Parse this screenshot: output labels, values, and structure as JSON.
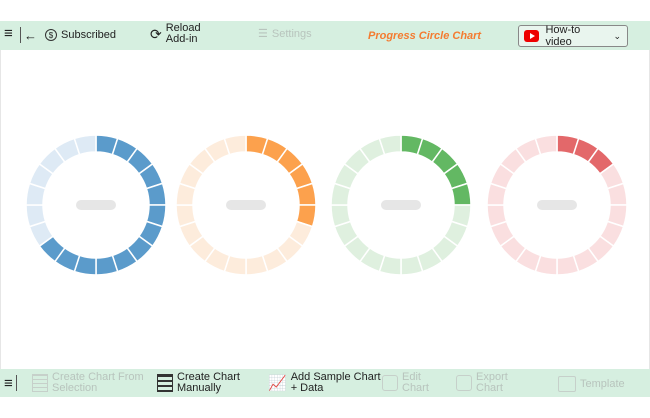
{
  "toolbar": {
    "subscribed": "Subscribed",
    "reload_line1": "Reload",
    "reload_line2": "Add-in",
    "settings": "Settings",
    "title": "Progress Circle Chart",
    "howto": "How-to video"
  },
  "bottom": {
    "from_sel_1": "Create Chart From",
    "from_sel_2": "Selection",
    "manual_1": "Create Chart",
    "manual_2": "Manually",
    "sample_1": "Add Sample Chart",
    "sample_2": "+ Data",
    "edit_1": "Edit",
    "edit_2": "Chart",
    "export_1": "Export",
    "export_2": "Chart",
    "template": "Template"
  },
  "chart_data": {
    "type": "progress-circle",
    "segments": 20,
    "series": [
      {
        "value": 65,
        "color": "#5b9bcb",
        "track": "#deeaf5"
      },
      {
        "value": 30,
        "color": "#fca14d",
        "track": "#fdecdc"
      },
      {
        "value": 25,
        "color": "#63b863",
        "track": "#dff0df"
      },
      {
        "value": 15,
        "color": "#e3686a",
        "track": "#fadfe0"
      }
    ]
  }
}
